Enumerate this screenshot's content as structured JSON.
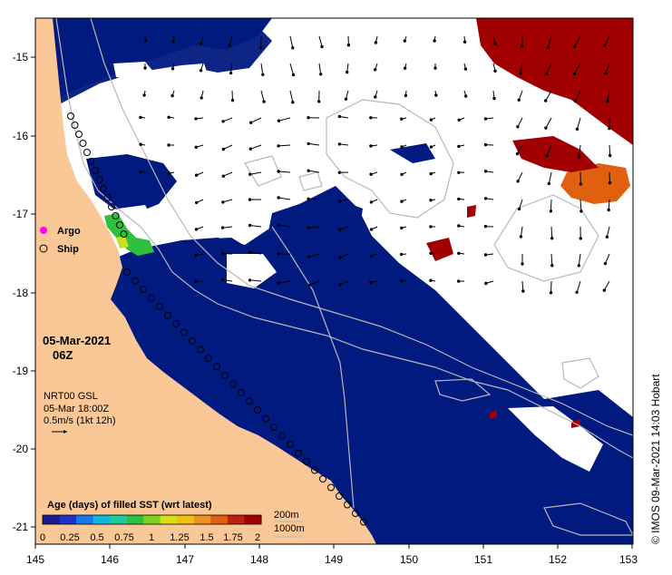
{
  "map": {
    "x_axis": {
      "ticks": [
        "145",
        "146",
        "147",
        "148",
        "149",
        "150",
        "151",
        "152",
        "153"
      ]
    },
    "y_axis": {
      "ticks": [
        "-15",
        "-16",
        "-17",
        "-18",
        "-19",
        "-20",
        "-21"
      ]
    },
    "legend_markers": {
      "argo": "Argo",
      "ship": "Ship"
    },
    "datetime": {
      "date": "05-Mar-2021",
      "time": "06Z"
    },
    "current_info": {
      "line1": "NRT00 GSL",
      "line2": "05-Mar 18:00Z",
      "line3": "0.5m/s (1kt 12h)"
    },
    "colorbar": {
      "title": "Age (days) of filled SST (wrt latest)",
      "ticks": [
        "0",
        "0.25",
        "0.5",
        "0.75",
        "1",
        "1.25",
        "1.5",
        "1.75",
        "2"
      ],
      "colors": [
        "#1a1a8c",
        "#2030c8",
        "#1878e8",
        "#10b8e0",
        "#20c8a0",
        "#30c040",
        "#80d020",
        "#d8e010",
        "#f0c010",
        "#f09020",
        "#e06010",
        "#c02010",
        "#a00000"
      ]
    },
    "depth_legend": {
      "contour1": "200m",
      "contour2": "1000m"
    },
    "credit": "© IMOS 09-Mar-2021 14:03 Hobart",
    "colors": {
      "land": "#f9c896",
      "sst_age_0": "#001a80",
      "sst_age_1_6": "#e06010",
      "sst_age_2": "#a00000",
      "no_data": "#ffffff",
      "argo": "#ff00ff",
      "contour": "#b8b8b8"
    }
  }
}
